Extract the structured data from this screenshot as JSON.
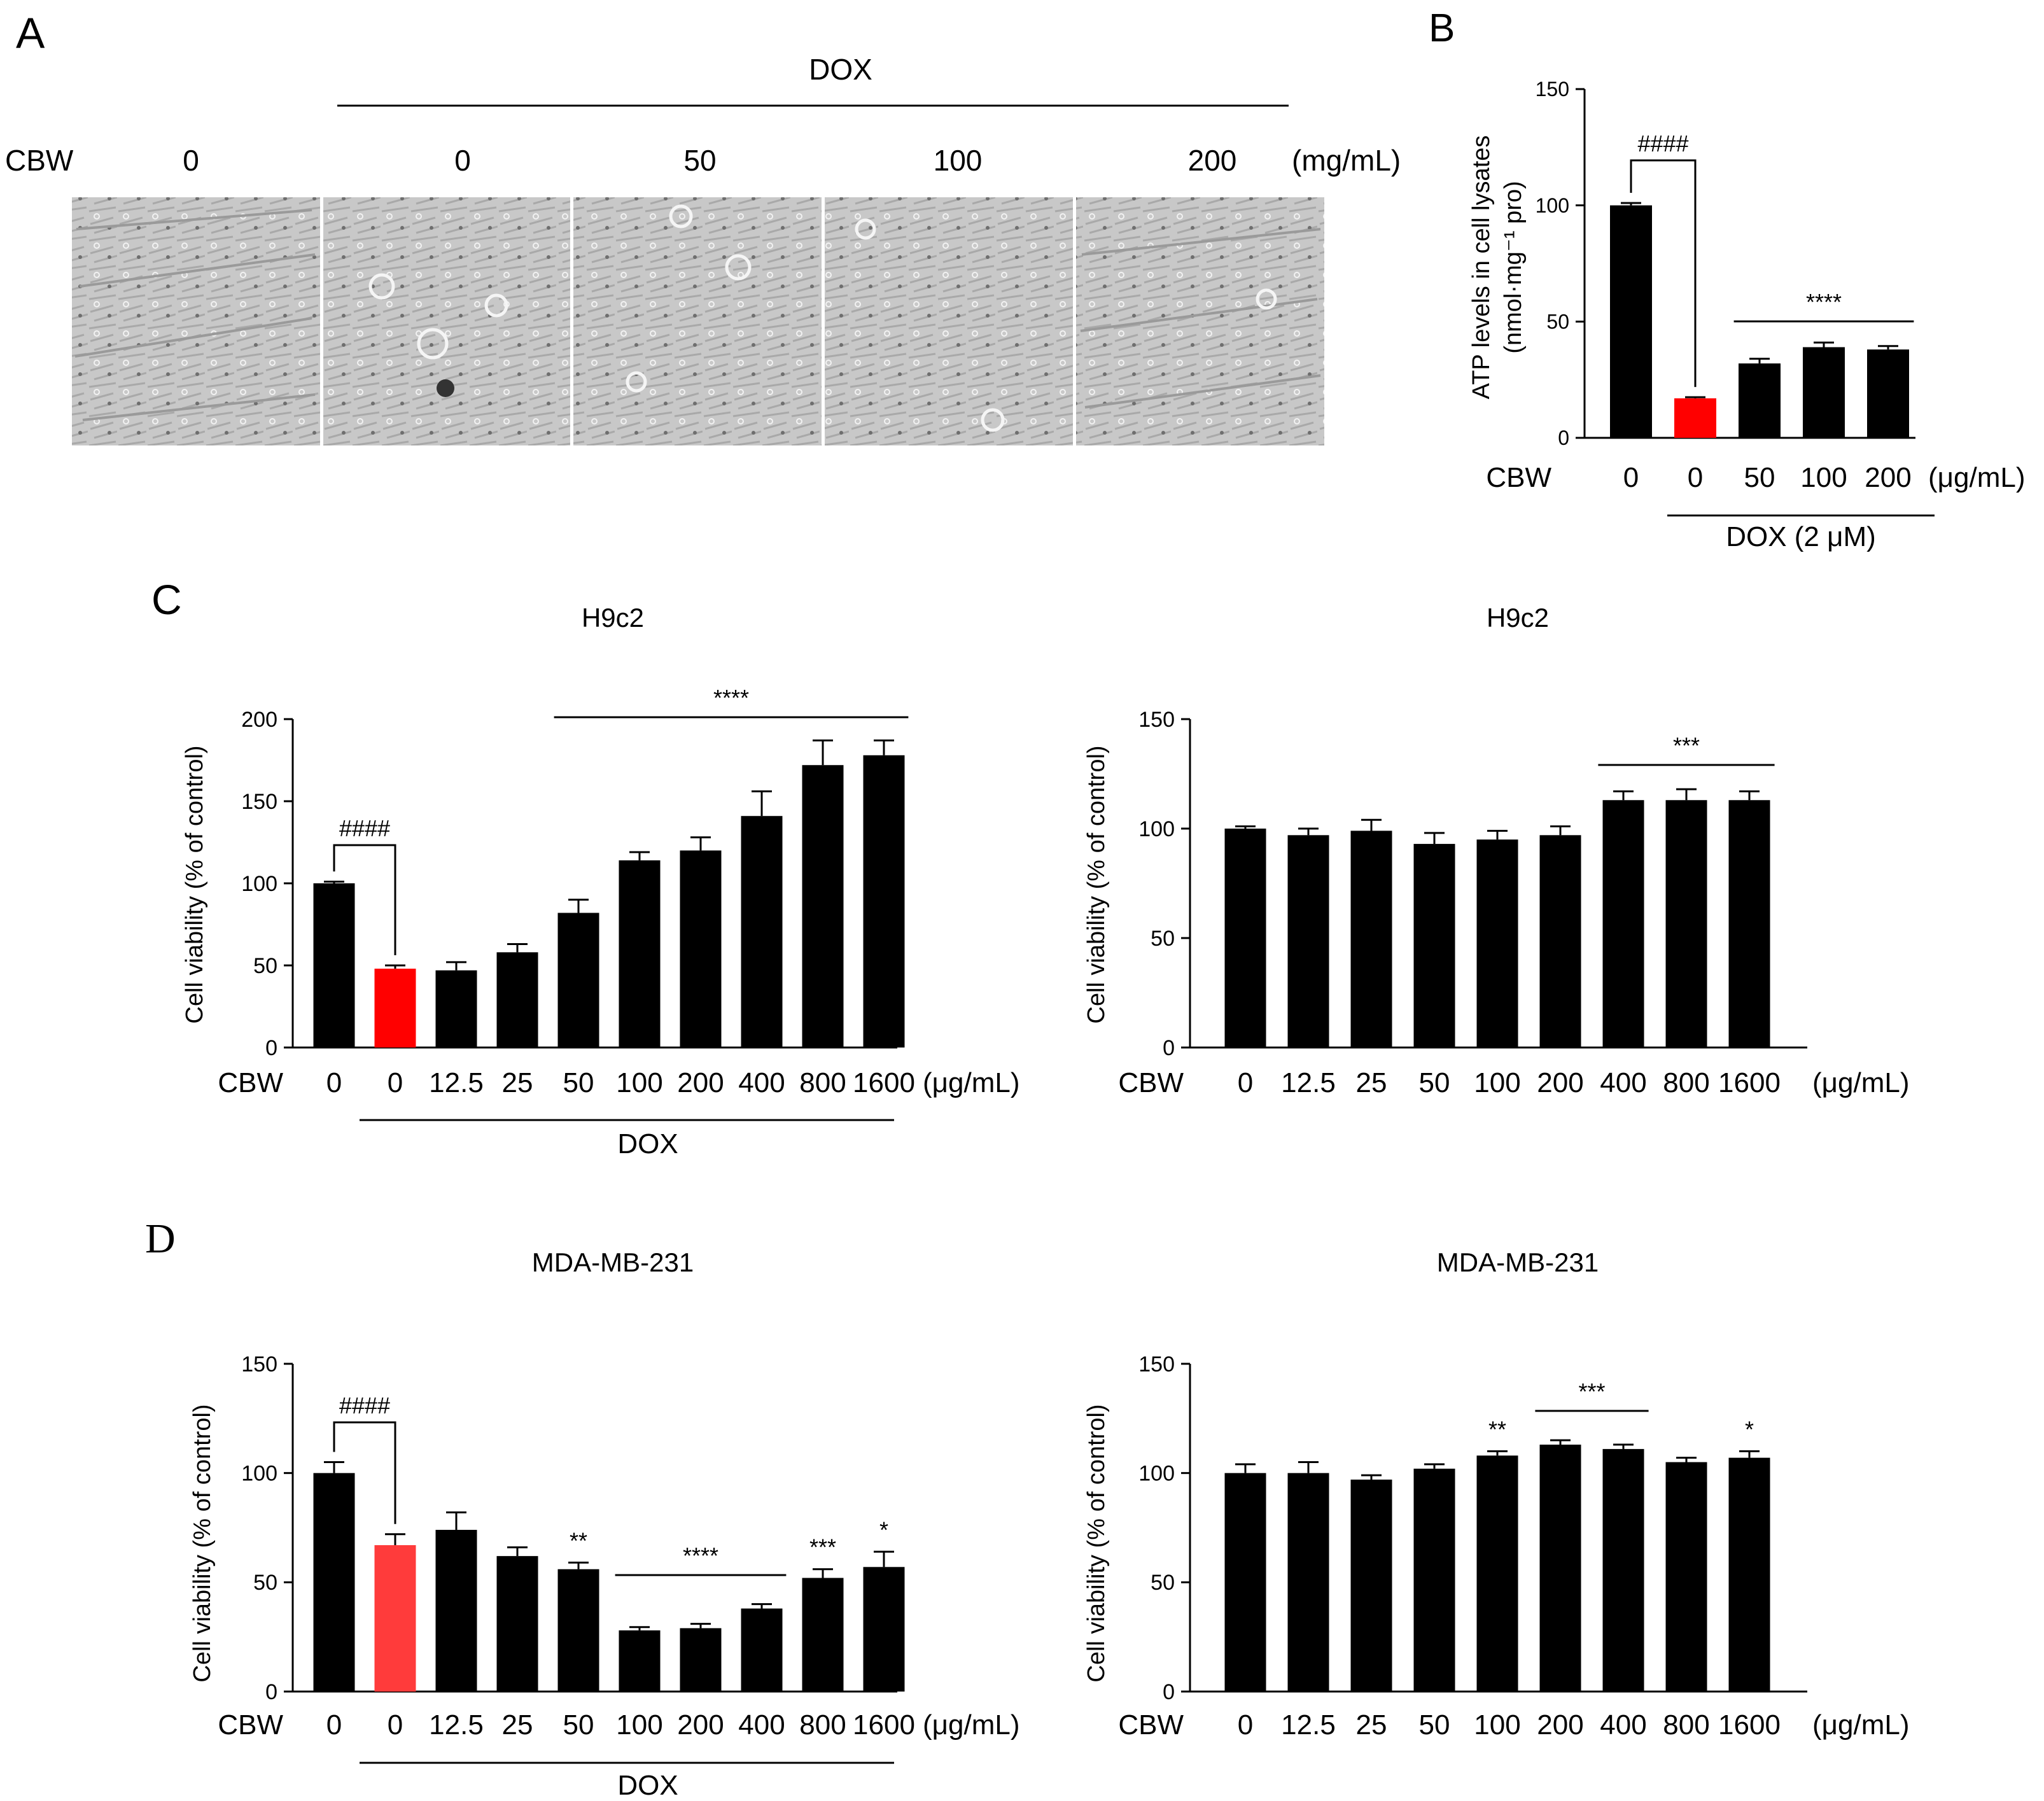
{
  "colors": {
    "bar": "#000000",
    "highlight": "#ff0000",
    "highlight_light": "#ff3b3b",
    "micro_bg": "#c8c8c8"
  },
  "panel_a": {
    "letter": "A",
    "dox_label": "DOX",
    "cbw_label": "CBW",
    "concentrations": [
      "0",
      "0",
      "50",
      "100",
      "200"
    ],
    "unit": "(mg/mL)",
    "images": [
      "micrograph-control",
      "micrograph-dox-cbw-0",
      "micrograph-dox-cbw-50",
      "micrograph-dox-cbw-100",
      "micrograph-dox-cbw-200"
    ]
  },
  "chart_data": [
    {
      "id": "B",
      "panel_letter": "B",
      "type": "bar",
      "title": "",
      "ylabel_lines": [
        "ATP levels in cell lysates",
        "(nmol·mg⁻¹ pro)"
      ],
      "ylim": [
        0,
        150
      ],
      "yticks": [
        0,
        50,
        100,
        150
      ],
      "x_prefix": "CBW",
      "categories": [
        "0",
        "0",
        "50",
        "100",
        "200"
      ],
      "unit": "(μg/mL)",
      "values": [
        100,
        17,
        32,
        39,
        38
      ],
      "errors": [
        1,
        0.5,
        2,
        2,
        1.5
      ],
      "colors": [
        "#000000",
        "#ff0000",
        "#000000",
        "#000000",
        "#000000"
      ],
      "group_label": "DOX (2 μM)",
      "annotations": [
        {
          "text": "####",
          "type": "bracket",
          "from": 0,
          "to": 1
        },
        {
          "text": "****",
          "type": "line",
          "from": 2,
          "to": 4
        }
      ]
    },
    {
      "id": "C1",
      "panel_letter": "C",
      "type": "bar",
      "title": "H9c2",
      "ylabel": "Cell viability (% of control)",
      "ylim": [
        0,
        200
      ],
      "yticks": [
        0,
        50,
        100,
        150,
        200
      ],
      "x_prefix": "CBW",
      "categories": [
        "0",
        "0",
        "12.5",
        "25",
        "50",
        "100",
        "200",
        "400",
        "800",
        "1600"
      ],
      "unit": "(μg/mL)",
      "values": [
        100,
        48,
        47,
        58,
        82,
        114,
        120,
        141,
        172,
        178
      ],
      "errors": [
        1,
        2,
        5,
        5,
        8,
        5,
        8,
        15,
        15,
        9
      ],
      "colors": [
        "#000000",
        "#ff0000",
        "#000000",
        "#000000",
        "#000000",
        "#000000",
        "#000000",
        "#000000",
        "#000000",
        "#000000"
      ],
      "group_label": "DOX",
      "annotations": [
        {
          "text": "####",
          "type": "bracket",
          "from": 0,
          "to": 1
        },
        {
          "text": "****",
          "type": "line",
          "from": 4,
          "to": 9
        }
      ]
    },
    {
      "id": "C2",
      "type": "bar",
      "title": "H9c2",
      "ylabel": "Cell viability (% of control)",
      "ylim": [
        0,
        150
      ],
      "yticks": [
        0,
        50,
        100,
        150
      ],
      "x_prefix": "CBW",
      "categories": [
        "0",
        "12.5",
        "25",
        "50",
        "100",
        "200",
        "400",
        "800",
        "1600"
      ],
      "unit": "(μg/mL)",
      "values": [
        100,
        97,
        99,
        93,
        95,
        97,
        113,
        113,
        113
      ],
      "errors": [
        1,
        3,
        5,
        5,
        4,
        4,
        4,
        5,
        4
      ],
      "colors": [
        "#000000",
        "#000000",
        "#000000",
        "#000000",
        "#000000",
        "#000000",
        "#000000",
        "#000000",
        "#000000"
      ],
      "annotations": [
        {
          "text": "***",
          "type": "line",
          "from": 6,
          "to": 8
        }
      ]
    },
    {
      "id": "D1",
      "panel_letter": "D",
      "type": "bar",
      "title": "MDA-MB-231",
      "ylabel": "Cell viability (% of control)",
      "ylim": [
        0,
        150
      ],
      "yticks": [
        0,
        50,
        100,
        150
      ],
      "x_prefix": "CBW",
      "categories": [
        "0",
        "0",
        "12.5",
        "25",
        "50",
        "100",
        "200",
        "400",
        "800",
        "1600"
      ],
      "unit": "(μg/mL)",
      "values": [
        100,
        67,
        74,
        62,
        56,
        28,
        29,
        38,
        52,
        57
      ],
      "errors": [
        5,
        5,
        8,
        4,
        3,
        1.5,
        2,
        2,
        4,
        7
      ],
      "colors": [
        "#000000",
        "#ff3b3b",
        "#000000",
        "#000000",
        "#000000",
        "#000000",
        "#000000",
        "#000000",
        "#000000",
        "#000000"
      ],
      "group_label": "DOX",
      "annotations": [
        {
          "text": "####",
          "type": "bracket",
          "from": 0,
          "to": 1
        },
        {
          "text": "**",
          "type": "star",
          "at": 4
        },
        {
          "text": "****",
          "type": "line",
          "from": 5,
          "to": 7
        },
        {
          "text": "***",
          "type": "star",
          "at": 8
        },
        {
          "text": "*",
          "type": "star",
          "at": 9
        }
      ]
    },
    {
      "id": "D2",
      "type": "bar",
      "title": "MDA-MB-231",
      "ylabel": "Cell viability (% of control)",
      "ylim": [
        0,
        150
      ],
      "yticks": [
        0,
        50,
        100,
        150
      ],
      "x_prefix": "CBW",
      "categories": [
        "0",
        "12.5",
        "25",
        "50",
        "100",
        "200",
        "400",
        "800",
        "1600"
      ],
      "unit": "(μg/mL)",
      "values": [
        100,
        100,
        97,
        102,
        108,
        113,
        111,
        105,
        107
      ],
      "errors": [
        4,
        5,
        2,
        2,
        2,
        2,
        2,
        2,
        3
      ],
      "colors": [
        "#000000",
        "#000000",
        "#000000",
        "#000000",
        "#000000",
        "#000000",
        "#000000",
        "#000000",
        "#000000"
      ],
      "annotations": [
        {
          "text": "**",
          "type": "star",
          "at": 4
        },
        {
          "text": "***",
          "type": "line",
          "from": 5,
          "to": 6
        },
        {
          "text": "*",
          "type": "star",
          "at": 8
        }
      ]
    }
  ]
}
